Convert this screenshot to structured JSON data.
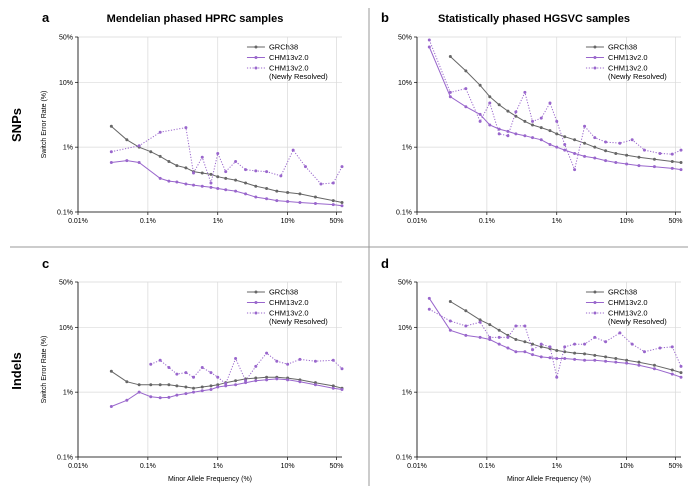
{
  "colors": {
    "grch38": "#666666",
    "chm": "#9966cc",
    "grid": "#d9d9d9",
    "divider": "#999999"
  },
  "row_labels": [
    "SNPs",
    "Indels"
  ],
  "chart_data": [
    {
      "type": "line",
      "letter": "a",
      "title": "Mendelian phased HPRC samples",
      "xlabel": "",
      "ylabel": "Switch Error Rate (%)",
      "x_scale": "log",
      "y_scale": "log",
      "xlim": [
        0.01,
        60
      ],
      "ylim": [
        0.1,
        50
      ],
      "xticks": [
        {
          "v": 0.01,
          "label": "0.01%"
        },
        {
          "v": 0.1,
          "label": "0.1%"
        },
        {
          "v": 1,
          "label": "1%"
        },
        {
          "v": 10,
          "label": "10%"
        },
        {
          "v": 50,
          "label": "50%"
        }
      ],
      "yticks": [
        {
          "v": 0.1,
          "label": "0.1%"
        },
        {
          "v": 1,
          "label": "1%"
        },
        {
          "v": 10,
          "label": "10%"
        },
        {
          "v": 50,
          "label": "50%"
        }
      ],
      "grid": true,
      "legend": "top-right",
      "series": [
        {
          "name": "GRCh38",
          "style": "solid",
          "color": "#666666",
          "x": [
            0.03,
            0.05,
            0.075,
            0.11,
            0.15,
            0.2,
            0.26,
            0.35,
            0.45,
            0.6,
            0.8,
            1.0,
            1.3,
            1.8,
            2.5,
            3.5,
            5,
            7,
            10,
            15,
            25,
            45,
            60
          ],
          "y": [
            2.1,
            1.3,
            1.0,
            0.85,
            0.72,
            0.6,
            0.52,
            0.48,
            0.42,
            0.4,
            0.38,
            0.35,
            0.33,
            0.31,
            0.28,
            0.25,
            0.23,
            0.21,
            0.2,
            0.19,
            0.17,
            0.15,
            0.14
          ]
        },
        {
          "name": "CHM13v2.0",
          "style": "solid",
          "color": "#9966cc",
          "x": [
            0.03,
            0.05,
            0.075,
            0.15,
            0.2,
            0.26,
            0.35,
            0.45,
            0.6,
            0.8,
            1.0,
            1.3,
            1.8,
            2.5,
            3.5,
            5,
            7,
            10,
            15,
            25,
            45,
            60
          ],
          "y": [
            0.58,
            0.62,
            0.58,
            0.33,
            0.3,
            0.29,
            0.27,
            0.26,
            0.25,
            0.24,
            0.23,
            0.22,
            0.21,
            0.19,
            0.17,
            0.16,
            0.15,
            0.145,
            0.14,
            0.135,
            0.13,
            0.125
          ]
        },
        {
          "name": "CHM13v2.0\n(Newly Resolved)",
          "style": "dotted",
          "color": "#9966cc",
          "x": [
            0.03,
            0.075,
            0.15,
            0.35,
            0.45,
            0.6,
            0.8,
            1.0,
            1.3,
            1.8,
            2.5,
            3.5,
            5,
            8,
            12,
            18,
            30,
            45,
            60
          ],
          "y": [
            0.85,
            1.05,
            1.7,
            2.0,
            0.4,
            0.7,
            0.28,
            0.8,
            0.42,
            0.6,
            0.45,
            0.43,
            0.42,
            0.36,
            0.9,
            0.5,
            0.27,
            0.28,
            0.5
          ]
        }
      ]
    },
    {
      "type": "line",
      "letter": "b",
      "title": "Statistically phased HGSVC samples",
      "xlabel": "",
      "ylabel": "",
      "x_scale": "log",
      "y_scale": "log",
      "xlim": [
        0.01,
        60
      ],
      "ylim": [
        0.1,
        50
      ],
      "xticks": [
        {
          "v": 0.01,
          "label": "0.01%"
        },
        {
          "v": 0.1,
          "label": "0.1%"
        },
        {
          "v": 1,
          "label": "1%"
        },
        {
          "v": 10,
          "label": "10%"
        },
        {
          "v": 50,
          "label": "50%"
        }
      ],
      "yticks": [
        {
          "v": 0.1,
          "label": "0.1%"
        },
        {
          "v": 1,
          "label": "1%"
        },
        {
          "v": 10,
          "label": "10%"
        },
        {
          "v": 50,
          "label": "50%"
        }
      ],
      "grid": true,
      "legend": "top-right",
      "series": [
        {
          "name": "GRCh38",
          "style": "solid",
          "color": "#666666",
          "x": [
            0.03,
            0.05,
            0.08,
            0.11,
            0.15,
            0.2,
            0.26,
            0.35,
            0.45,
            0.6,
            0.8,
            1.0,
            1.3,
            1.8,
            2.5,
            3.5,
            5,
            7,
            10,
            15,
            25,
            45,
            60
          ],
          "y": [
            25,
            15,
            9,
            6,
            4.5,
            3.6,
            3,
            2.5,
            2.2,
            2,
            1.8,
            1.6,
            1.45,
            1.3,
            1.15,
            1,
            0.88,
            0.8,
            0.75,
            0.7,
            0.65,
            0.6,
            0.58
          ]
        },
        {
          "name": "CHM13v2.0",
          "style": "solid",
          "color": "#9966cc",
          "x": [
            0.015,
            0.03,
            0.05,
            0.08,
            0.11,
            0.15,
            0.2,
            0.26,
            0.35,
            0.45,
            0.6,
            0.8,
            1.0,
            1.3,
            1.8,
            2.5,
            3.5,
            5,
            7,
            10,
            15,
            25,
            45,
            60
          ],
          "y": [
            35,
            6,
            4.2,
            3.2,
            2.2,
            1.9,
            1.75,
            1.6,
            1.5,
            1.4,
            1.3,
            1.1,
            1,
            0.9,
            0.8,
            0.72,
            0.68,
            0.62,
            0.58,
            0.55,
            0.52,
            0.5,
            0.47,
            0.45
          ]
        },
        {
          "name": "CHM13v2.0\n(Newly Resolved)",
          "style": "dotted",
          "color": "#9966cc",
          "x": [
            0.015,
            0.03,
            0.05,
            0.08,
            0.11,
            0.15,
            0.2,
            0.26,
            0.35,
            0.45,
            0.6,
            0.8,
            1.0,
            1.3,
            1.8,
            2.5,
            3.5,
            5,
            8,
            12,
            18,
            30,
            45,
            60
          ],
          "y": [
            45,
            7,
            8,
            2.5,
            4.8,
            1.6,
            1.5,
            3.5,
            7,
            2.5,
            2.8,
            4.8,
            2.5,
            1.1,
            0.45,
            2.1,
            1.4,
            1.2,
            1.15,
            1.3,
            0.9,
            0.8,
            0.78,
            0.9
          ]
        }
      ]
    },
    {
      "type": "line",
      "letter": "c",
      "title": "",
      "xlabel": "Minor Allele Frequency (%)",
      "ylabel": "Switch Error Rate (%)",
      "x_scale": "log",
      "y_scale": "log",
      "xlim": [
        0.01,
        60
      ],
      "ylim": [
        0.1,
        50
      ],
      "xticks": [
        {
          "v": 0.01,
          "label": "0.01%"
        },
        {
          "v": 0.1,
          "label": "0.1%"
        },
        {
          "v": 1,
          "label": "1%"
        },
        {
          "v": 10,
          "label": "10%"
        },
        {
          "v": 50,
          "label": "50%"
        }
      ],
      "yticks": [
        {
          "v": 0.1,
          "label": "0.1%"
        },
        {
          "v": 1,
          "label": "1%"
        },
        {
          "v": 10,
          "label": "10%"
        },
        {
          "v": 50,
          "label": "50%"
        }
      ],
      "grid": true,
      "legend": "top-right",
      "series": [
        {
          "name": "GRCh38",
          "style": "solid",
          "color": "#666666",
          "x": [
            0.03,
            0.05,
            0.075,
            0.11,
            0.15,
            0.2,
            0.26,
            0.35,
            0.45,
            0.6,
            0.8,
            1.0,
            1.3,
            1.8,
            2.5,
            3.5,
            5,
            7,
            10,
            15,
            25,
            45,
            60
          ],
          "y": [
            2.1,
            1.45,
            1.3,
            1.3,
            1.3,
            1.3,
            1.25,
            1.2,
            1.15,
            1.2,
            1.25,
            1.3,
            1.4,
            1.5,
            1.6,
            1.65,
            1.7,
            1.7,
            1.65,
            1.55,
            1.4,
            1.25,
            1.15
          ]
        },
        {
          "name": "CHM13v2.0",
          "style": "solid",
          "color": "#9966cc",
          "x": [
            0.03,
            0.05,
            0.075,
            0.11,
            0.15,
            0.2,
            0.26,
            0.35,
            0.45,
            0.6,
            0.8,
            1.0,
            1.3,
            1.8,
            2.5,
            3.5,
            5,
            7,
            10,
            15,
            25,
            45,
            60
          ],
          "y": [
            0.6,
            0.75,
            1.0,
            0.85,
            0.82,
            0.83,
            0.9,
            0.95,
            1.0,
            1.05,
            1.1,
            1.2,
            1.25,
            1.3,
            1.4,
            1.5,
            1.55,
            1.6,
            1.55,
            1.45,
            1.3,
            1.15,
            1.1
          ]
        },
        {
          "name": "CHM13v2.0\n(Newly Resolved)",
          "style": "dotted",
          "color": "#9966cc",
          "x": [
            0.11,
            0.15,
            0.2,
            0.26,
            0.35,
            0.45,
            0.6,
            0.8,
            1.0,
            1.3,
            1.8,
            2.5,
            3.5,
            5,
            7,
            10,
            15,
            25,
            45,
            60
          ],
          "y": [
            2.7,
            3.1,
            2.4,
            1.9,
            2.0,
            1.7,
            2.4,
            2.0,
            1.7,
            1.35,
            3.3,
            1.5,
            2.5,
            4.0,
            3.0,
            2.7,
            3.2,
            3.0,
            3.1,
            2.3
          ]
        }
      ]
    },
    {
      "type": "line",
      "letter": "d",
      "title": "",
      "xlabel": "Minor Allele Frequency (%)",
      "ylabel": "",
      "x_scale": "log",
      "y_scale": "log",
      "xlim": [
        0.01,
        60
      ],
      "ylim": [
        0.1,
        50
      ],
      "xticks": [
        {
          "v": 0.01,
          "label": "0.01%"
        },
        {
          "v": 0.1,
          "label": "0.1%"
        },
        {
          "v": 1,
          "label": "1%"
        },
        {
          "v": 10,
          "label": "10%"
        },
        {
          "v": 50,
          "label": "50%"
        }
      ],
      "yticks": [
        {
          "v": 0.1,
          "label": "0.1%"
        },
        {
          "v": 1,
          "label": "1%"
        },
        {
          "v": 10,
          "label": "10%"
        },
        {
          "v": 50,
          "label": "50%"
        }
      ],
      "grid": true,
      "legend": "top-right",
      "series": [
        {
          "name": "GRCh38",
          "style": "solid",
          "color": "#666666",
          "x": [
            0.03,
            0.05,
            0.08,
            0.11,
            0.15,
            0.2,
            0.26,
            0.35,
            0.45,
            0.6,
            0.8,
            1.0,
            1.3,
            1.8,
            2.5,
            3.5,
            5,
            7,
            10,
            15,
            25,
            45,
            60
          ],
          "y": [
            25,
            18,
            13,
            11,
            9,
            7.5,
            6.5,
            6,
            5.5,
            5,
            4.7,
            4.4,
            4.2,
            4,
            3.9,
            3.7,
            3.5,
            3.3,
            3.1,
            2.9,
            2.6,
            2.2,
            2.0
          ]
        },
        {
          "name": "CHM13v2.0",
          "style": "solid",
          "color": "#9966cc",
          "x": [
            0.015,
            0.03,
            0.05,
            0.08,
            0.11,
            0.15,
            0.2,
            0.26,
            0.35,
            0.45,
            0.6,
            0.8,
            1.0,
            1.3,
            1.8,
            2.5,
            3.5,
            5,
            7,
            10,
            15,
            25,
            45,
            60
          ],
          "y": [
            28,
            9,
            7.5,
            7,
            6.5,
            5.5,
            4.8,
            4.2,
            4.2,
            3.8,
            3.5,
            3.4,
            3.3,
            3.3,
            3.2,
            3.1,
            3.1,
            3,
            2.9,
            2.8,
            2.6,
            2.3,
            1.9,
            1.7
          ]
        },
        {
          "name": "CHM13v2.0\n(Newly Resolved)",
          "style": "dotted",
          "color": "#9966cc",
          "x": [
            0.015,
            0.03,
            0.05,
            0.08,
            0.11,
            0.15,
            0.2,
            0.26,
            0.35,
            0.45,
            0.6,
            0.8,
            1.0,
            1.3,
            1.8,
            2.5,
            3.5,
            5,
            8,
            12,
            18,
            30,
            45,
            60
          ],
          "y": [
            19,
            12.5,
            10.5,
            12,
            7,
            7,
            7,
            10.5,
            10.5,
            4.5,
            5.5,
            5,
            1.7,
            5,
            5.5,
            5.5,
            7,
            6,
            8.2,
            5.5,
            4.2,
            4.8,
            5.0,
            2.5
          ]
        }
      ]
    }
  ]
}
